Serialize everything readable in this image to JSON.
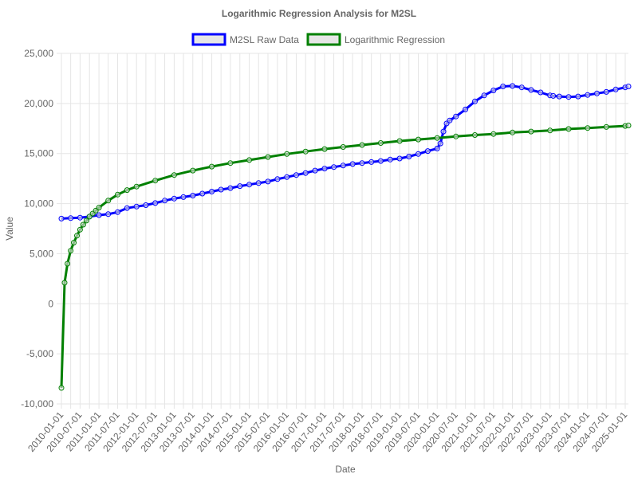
{
  "chart_data": {
    "type": "line",
    "title": "Logarithmic Regression Analysis for M2SL",
    "xlabel": "Date",
    "ylabel": "Value",
    "ylim": [
      -10000,
      25000
    ],
    "y_ticks": [
      "25,000",
      "20,000",
      "15,000",
      "10,000",
      "5,000",
      "0",
      "-5,000",
      "-10,000"
    ],
    "x_tick_labels": [
      "2010-01-01",
      "2010-07-01",
      "2011-01-01",
      "2011-07-01",
      "2012-01-01",
      "2012-07-01",
      "2013-01-01",
      "2013-07-01",
      "2014-01-01",
      "2014-07-01",
      "2015-01-01",
      "2015-07-01",
      "2016-01-01",
      "2016-07-01",
      "2017-01-01",
      "2017-07-01",
      "2018-01-01",
      "2018-07-01",
      "2019-01-01",
      "2019-07-01",
      "2020-01-01",
      "2020-07-01",
      "2021-01-01",
      "2021-07-01",
      "2022-01-01",
      "2022-07-01",
      "2023-01-01",
      "2023-07-01",
      "2024-01-01",
      "2024-07-01",
      "2025-01-01"
    ],
    "grid": true,
    "legend_position": "top",
    "series": [
      {
        "name": "M2SL Raw Data",
        "color": "#0000ff",
        "x": [
          "2010-01-01",
          "2010-04-01",
          "2010-07-01",
          "2010-10-01",
          "2011-01-01",
          "2011-04-01",
          "2011-07-01",
          "2011-10-01",
          "2012-01-01",
          "2012-04-01",
          "2012-07-01",
          "2012-10-01",
          "2013-01-01",
          "2013-04-01",
          "2013-07-01",
          "2013-10-01",
          "2014-01-01",
          "2014-04-01",
          "2014-07-01",
          "2014-10-01",
          "2015-01-01",
          "2015-04-01",
          "2015-07-01",
          "2015-10-01",
          "2016-01-01",
          "2016-04-01",
          "2016-07-01",
          "2016-10-01",
          "2017-01-01",
          "2017-04-01",
          "2017-07-01",
          "2017-10-01",
          "2018-01-01",
          "2018-04-01",
          "2018-07-01",
          "2018-10-01",
          "2019-01-01",
          "2019-04-01",
          "2019-07-01",
          "2019-10-01",
          "2020-01-01",
          "2020-02-01",
          "2020-03-01",
          "2020-04-01",
          "2020-05-01",
          "2020-07-01",
          "2020-10-01",
          "2021-01-01",
          "2021-04-01",
          "2021-07-01",
          "2021-10-01",
          "2022-01-01",
          "2022-04-01",
          "2022-07-01",
          "2022-10-01",
          "2023-01-01",
          "2023-02-01",
          "2023-04-01",
          "2023-07-01",
          "2023-10-01",
          "2024-01-01",
          "2024-04-01",
          "2024-07-01",
          "2024-10-01",
          "2025-01-01",
          "2025-02-01"
        ],
        "values": [
          8500,
          8550,
          8600,
          8700,
          8850,
          8950,
          9150,
          9550,
          9700,
          9850,
          10050,
          10300,
          10500,
          10650,
          10800,
          11000,
          11200,
          11400,
          11550,
          11750,
          11900,
          12050,
          12200,
          12450,
          12650,
          12850,
          13050,
          13300,
          13500,
          13650,
          13800,
          13950,
          14050,
          14150,
          14250,
          14400,
          14500,
          14700,
          14950,
          15250,
          15500,
          16000,
          17200,
          18000,
          18300,
          18700,
          19400,
          20200,
          20800,
          21300,
          21700,
          21750,
          21600,
          21350,
          21100,
          20800,
          20750,
          20700,
          20650,
          20700,
          20850,
          21000,
          21150,
          21400,
          21600,
          21700
        ]
      },
      {
        "name": "Logarithmic Regression",
        "color": "#008000",
        "x": [
          "2010-01-01",
          "2010-02-01",
          "2010-03-01",
          "2010-04-01",
          "2010-05-01",
          "2010-06-01",
          "2010-07-01",
          "2010-08-01",
          "2010-09-01",
          "2010-10-01",
          "2010-11-01",
          "2010-12-01",
          "2011-01-01",
          "2011-04-01",
          "2011-07-01",
          "2011-10-01",
          "2012-01-01",
          "2012-07-01",
          "2013-01-01",
          "2013-07-01",
          "2014-01-01",
          "2014-07-01",
          "2015-01-01",
          "2015-07-01",
          "2016-01-01",
          "2016-07-01",
          "2017-01-01",
          "2017-07-01",
          "2018-01-01",
          "2018-07-01",
          "2019-01-01",
          "2019-07-01",
          "2020-01-01",
          "2020-07-01",
          "2021-01-01",
          "2021-07-01",
          "2022-01-01",
          "2022-07-01",
          "2023-01-01",
          "2023-07-01",
          "2024-01-01",
          "2024-07-01",
          "2025-01-01",
          "2025-02-01"
        ],
        "values": [
          -8400,
          2100,
          4000,
          5300,
          6100,
          6800,
          7400,
          7900,
          8300,
          8700,
          9000,
          9300,
          9600,
          10300,
          10900,
          11350,
          11700,
          12300,
          12850,
          13300,
          13700,
          14050,
          14350,
          14650,
          14950,
          15200,
          15450,
          15650,
          15850,
          16050,
          16250,
          16400,
          16550,
          16700,
          16850,
          16950,
          17100,
          17200,
          17300,
          17450,
          17550,
          17650,
          17750,
          17800
        ]
      }
    ]
  }
}
